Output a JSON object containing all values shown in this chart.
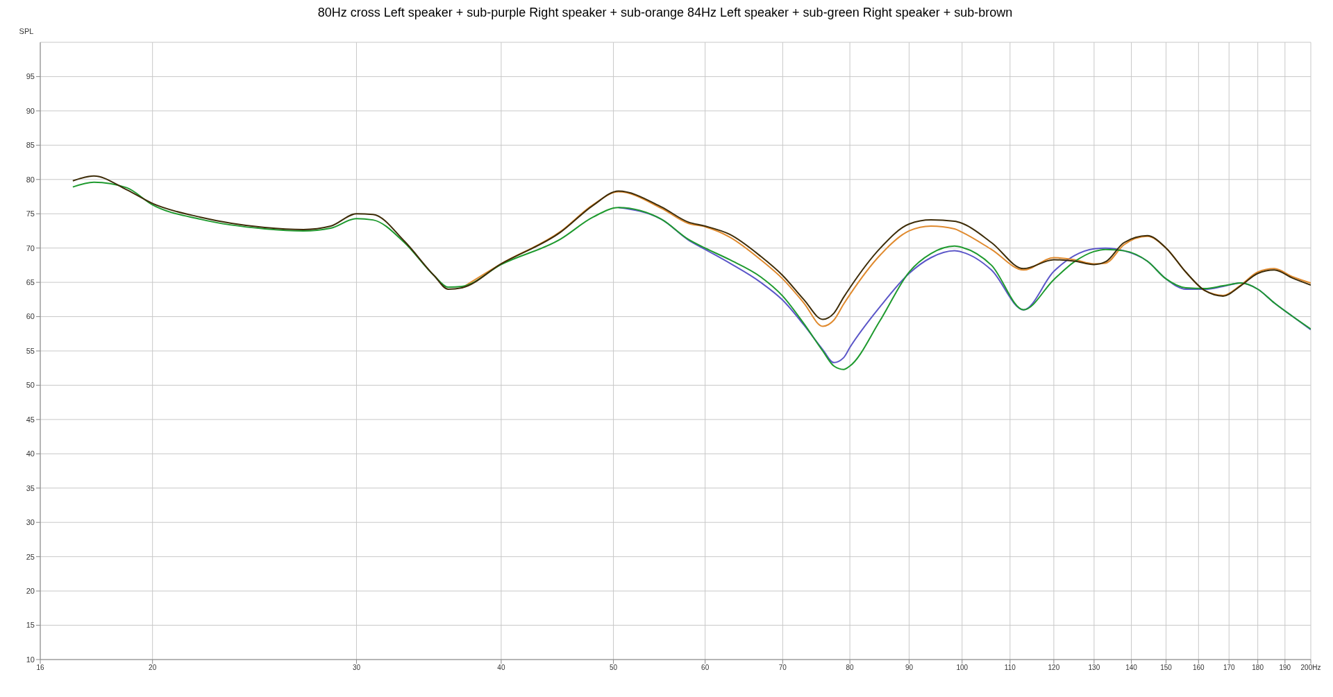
{
  "chart_data": {
    "type": "line",
    "title": "80Hz cross Left speaker + sub-purple Right speaker + sub-orange 84Hz Left speaker + sub-green Right speaker + sub-brown",
    "ylabel": "SPL",
    "x": [
      17.07,
      17.8,
      19,
      20,
      22,
      25,
      27,
      28.5,
      30,
      31,
      33,
      35,
      36,
      37,
      40,
      45,
      48,
      50.5,
      55,
      58,
      60,
      63,
      67,
      70,
      73,
      75.8,
      77.5,
      79,
      80,
      85,
      90,
      94,
      98.5,
      100,
      106,
      113,
      120,
      125,
      130,
      133,
      138,
      144.5,
      150,
      156,
      162,
      168,
      174,
      180,
      186,
      193,
      200
    ],
    "series": [
      {
        "color": "#5b56c8",
        "values": [
          null,
          null,
          null,
          null,
          null,
          null,
          null,
          null,
          null,
          null,
          null,
          null,
          null,
          null,
          null,
          null,
          null,
          75.9,
          74.2,
          71.2,
          69.8,
          67.8,
          65.0,
          62.4,
          58.8,
          55.2,
          53.3,
          54.0,
          55.5,
          61.5,
          66.3,
          68.6,
          69.6,
          69.4,
          66.8,
          61.0,
          66.6,
          68.9,
          69.9,
          70.0,
          69.6,
          68.1,
          65.5,
          64.0,
          64.0,
          64.4,
          64.9,
          64.0,
          62.0,
          60.0,
          58.1
        ]
      },
      {
        "color": "#e08a2e",
        "values": [
          null,
          null,
          null,
          null,
          null,
          null,
          null,
          null,
          null,
          null,
          null,
          null,
          null,
          64.2,
          67.7,
          72.4,
          76.3,
          78.2,
          75.8,
          73.6,
          73.1,
          71.6,
          68.3,
          65.5,
          62.0,
          58.6,
          59.5,
          61.8,
          63.2,
          69.0,
          72.5,
          73.2,
          72.8,
          72.3,
          69.8,
          66.8,
          68.6,
          68.3,
          67.7,
          67.8,
          70.5,
          71.7,
          70.0,
          66.5,
          63.8,
          63.1,
          64.6,
          66.5,
          67.0,
          65.8,
          64.9
        ]
      },
      {
        "color": "#1e9a2e",
        "values": [
          78.9,
          79.6,
          78.8,
          76.3,
          74.2,
          72.8,
          72.5,
          72.9,
          74.3,
          74.1,
          70.8,
          66.0,
          64.3,
          64.4,
          67.6,
          71.3,
          74.5,
          75.9,
          74.2,
          71.3,
          70.0,
          68.3,
          65.8,
          63.0,
          59.0,
          55.0,
          52.8,
          52.3,
          52.8,
          59.5,
          66.5,
          69.2,
          70.3,
          70.1,
          67.5,
          61.0,
          65.4,
          68.0,
          69.5,
          69.8,
          69.6,
          68.1,
          65.5,
          64.2,
          64.1,
          64.5,
          64.9,
          64.0,
          62.0,
          60.0,
          58.2
        ]
      },
      {
        "color": "#3d2c08",
        "values": [
          79.8,
          80.5,
          78.5,
          76.5,
          74.5,
          73.0,
          72.7,
          73.2,
          75.0,
          74.9,
          71.0,
          66.0,
          64.0,
          64.2,
          67.7,
          72.3,
          76.2,
          78.3,
          76.0,
          73.8,
          73.2,
          72.0,
          68.8,
          66.0,
          62.5,
          59.6,
          60.5,
          62.8,
          64.2,
          70.0,
          73.5,
          74.1,
          73.9,
          73.6,
          70.8,
          67.0,
          68.3,
          68.1,
          67.6,
          68.0,
          70.8,
          71.8,
          70.0,
          66.5,
          63.8,
          63.0,
          64.5,
          66.3,
          66.8,
          65.6,
          64.6
        ]
      }
    ],
    "log": "x",
    "xlim": [
      16,
      200
    ],
    "xticks": [
      16,
      20,
      30,
      40,
      50,
      60,
      70,
      80,
      90,
      100,
      110,
      120,
      130,
      140,
      150,
      160,
      170,
      180,
      190,
      {
        "value": 200,
        "label": "200Hz"
      }
    ],
    "ylim": [
      10,
      100
    ],
    "yticks": [
      10,
      15,
      20,
      25,
      30,
      35,
      40,
      45,
      50,
      55,
      60,
      65,
      70,
      75,
      80,
      85,
      90,
      95
    ],
    "grid": true,
    "marker": "none",
    "line_style": "solid"
  }
}
